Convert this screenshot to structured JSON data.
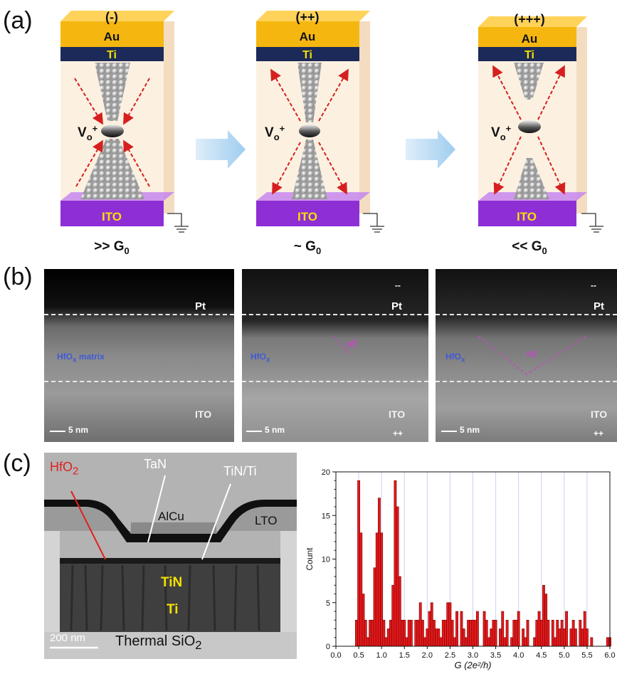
{
  "panel_a": {
    "label": "(a)",
    "devices": [
      {
        "charge": "(-)",
        "top": "Au",
        "mid": "Ti",
        "ion": "V",
        "ion_sub": "o",
        "ion_sup": "+",
        "bottom": "ITO",
        "caption_pre": ">> G",
        "caption_sub": "0"
      },
      {
        "charge": "(++)",
        "top": "Au",
        "mid": "Ti",
        "ion": "V",
        "ion_sub": "o",
        "ion_sup": "+",
        "bottom": "ITO",
        "caption_pre": "~ G",
        "caption_sub": "0"
      },
      {
        "charge": "(+++)",
        "top": "Au",
        "mid": "Ti",
        "ion": "V",
        "ion_sub": "o",
        "ion_sup": "+",
        "bottom": "ITO",
        "caption_pre": "<< G",
        "caption_sub": "0"
      }
    ],
    "colors": {
      "au": "#f5b70f",
      "ti": "#1c2a59",
      "ito": "#8e2fd6",
      "arrow": "#d62020",
      "ti_text": "#f6e000",
      "ito_text": "#f6e000"
    }
  },
  "panel_b": {
    "label": "(b)",
    "images": [
      {
        "pt": "Pt",
        "hfo": "HfO",
        "hfo_sub": "x",
        "hfo_suffix": " matrix",
        "hf": "",
        "ito": "ITO",
        "scale": "5 nm",
        "top_mark": "",
        "bottom_mark": ""
      },
      {
        "pt": "Pt",
        "hfo": "HfO",
        "hfo_sub": "x",
        "hfo_suffix": "",
        "hf": "Hf",
        "ito": "ITO",
        "scale": "5 nm",
        "top_mark": "--",
        "bottom_mark": "++"
      },
      {
        "pt": "Pt",
        "hfo": "HfO",
        "hfo_sub": "x",
        "hfo_suffix": "",
        "hf": "Hf",
        "ito": "ITO",
        "scale": "5 nm",
        "top_mark": "--",
        "bottom_mark": "++"
      }
    ]
  },
  "panel_c": {
    "label": "(c)",
    "sem": {
      "hfo2": "HfO",
      "hfo2_sub": "2",
      "tan": "TaN",
      "tinti": "TiN/Ti",
      "alcu": "AlCu",
      "lto": "LTO",
      "tin": "TiN",
      "ti": "Ti",
      "scale": "200 nm",
      "substrate": "Thermal SiO",
      "substrate_sub": "2"
    }
  },
  "chart_data": {
    "type": "bar",
    "xlabel": "G (2e²/h)",
    "ylabel": "Count",
    "xlim": [
      0,
      6.0
    ],
    "ylim": [
      0,
      20
    ],
    "xticks": [
      "0.0",
      "0.5",
      "1.0",
      "1.5",
      "2.0",
      "2.5",
      "3.0",
      "3.5",
      "4.0",
      "4.5",
      "5.0",
      "5.5",
      "6.0"
    ],
    "yticks": [
      "0",
      "5",
      "10",
      "15",
      "20"
    ],
    "bin_width": 0.05,
    "bar_color": "#e31a1c",
    "x": [
      0.45,
      0.5,
      0.55,
      0.6,
      0.65,
      0.7,
      0.75,
      0.8,
      0.85,
      0.9,
      0.95,
      1.0,
      1.05,
      1.1,
      1.15,
      1.2,
      1.25,
      1.3,
      1.35,
      1.4,
      1.45,
      1.5,
      1.55,
      1.6,
      1.65,
      1.75,
      1.8,
      1.85,
      1.9,
      1.95,
      2.0,
      2.05,
      2.1,
      2.15,
      2.2,
      2.25,
      2.3,
      2.35,
      2.4,
      2.45,
      2.5,
      2.55,
      2.6,
      2.65,
      2.75,
      2.8,
      2.85,
      2.9,
      2.95,
      3.0,
      3.05,
      3.1,
      3.25,
      3.3,
      3.35,
      3.4,
      3.45,
      3.5,
      3.6,
      3.65,
      3.7,
      3.75,
      3.85,
      3.9,
      3.95,
      4.0,
      4.1,
      4.15,
      4.2,
      4.35,
      4.4,
      4.45,
      4.5,
      4.55,
      4.6,
      4.65,
      4.75,
      4.8,
      4.85,
      4.9,
      4.95,
      5.0,
      5.05,
      5.15,
      5.2,
      5.25,
      5.35,
      5.4,
      5.45,
      5.5,
      5.6,
      5.95,
      6.0
    ],
    "values": [
      3,
      19,
      13,
      6,
      3,
      1,
      3,
      3,
      9,
      13,
      17,
      13,
      3,
      1,
      2,
      3,
      7,
      19,
      16,
      8,
      3,
      3,
      1,
      3,
      3,
      3,
      3,
      5,
      3,
      1,
      2,
      4,
      5,
      3,
      2,
      2,
      1,
      3,
      3,
      5,
      5,
      3,
      1,
      4,
      4,
      2,
      1,
      3,
      3,
      3,
      3,
      4,
      4,
      3,
      1,
      2,
      3,
      3,
      2,
      4,
      1,
      3,
      1,
      3,
      3,
      4,
      2,
      1,
      3,
      1,
      3,
      4,
      3,
      7,
      6,
      3,
      3,
      1,
      3,
      2,
      3,
      2,
      4,
      2,
      3,
      2,
      3,
      2,
      4,
      2,
      1,
      1,
      1
    ]
  }
}
